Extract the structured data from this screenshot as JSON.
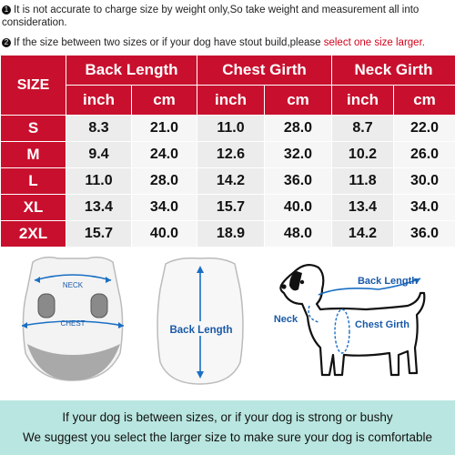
{
  "notes": [
    {
      "marker": "1",
      "text": "It is not accurate to charge size by weight only,So take weight and measurement all into consideration."
    },
    {
      "marker": "2",
      "text": "If the size between two sizes or if your dog have stout build,please ",
      "highlight": "select one size larger."
    }
  ],
  "table": {
    "corner": "SIZE",
    "groups": [
      "Back Length",
      "Chest Girth",
      "Neck Girth"
    ],
    "units": [
      "inch",
      "cm",
      "inch",
      "cm",
      "inch",
      "cm"
    ],
    "rows": [
      {
        "size": "S",
        "values": [
          "8.3",
          "21.0",
          "11.0",
          "28.0",
          "8.7",
          "22.0"
        ]
      },
      {
        "size": "M",
        "values": [
          "9.4",
          "24.0",
          "12.6",
          "32.0",
          "10.2",
          "26.0"
        ]
      },
      {
        "size": "L",
        "values": [
          "11.0",
          "28.0",
          "14.2",
          "36.0",
          "11.8",
          "30.0"
        ]
      },
      {
        "size": "XL",
        "values": [
          "13.4",
          "34.0",
          "15.7",
          "40.0",
          "13.4",
          "34.0"
        ]
      },
      {
        "size": "2XL",
        "values": [
          "15.7",
          "40.0",
          "18.9",
          "48.0",
          "14.2",
          "36.0"
        ]
      }
    ]
  },
  "illustration": {
    "front": {
      "neck": "NECK",
      "chest": "CHEST"
    },
    "back": {
      "label": "Back Length"
    },
    "dog": {
      "back": "Back Length",
      "neck": "Neck",
      "chest": "Chest Girth"
    },
    "colors": {
      "arrow": "#1a6fc4",
      "label": "#1a5aa8"
    }
  },
  "banner": {
    "line1": "If your dog is between sizes, or if your dog is strong or bushy",
    "line2": "We suggest you select the larger size to make sure  your dog is comfortable"
  }
}
